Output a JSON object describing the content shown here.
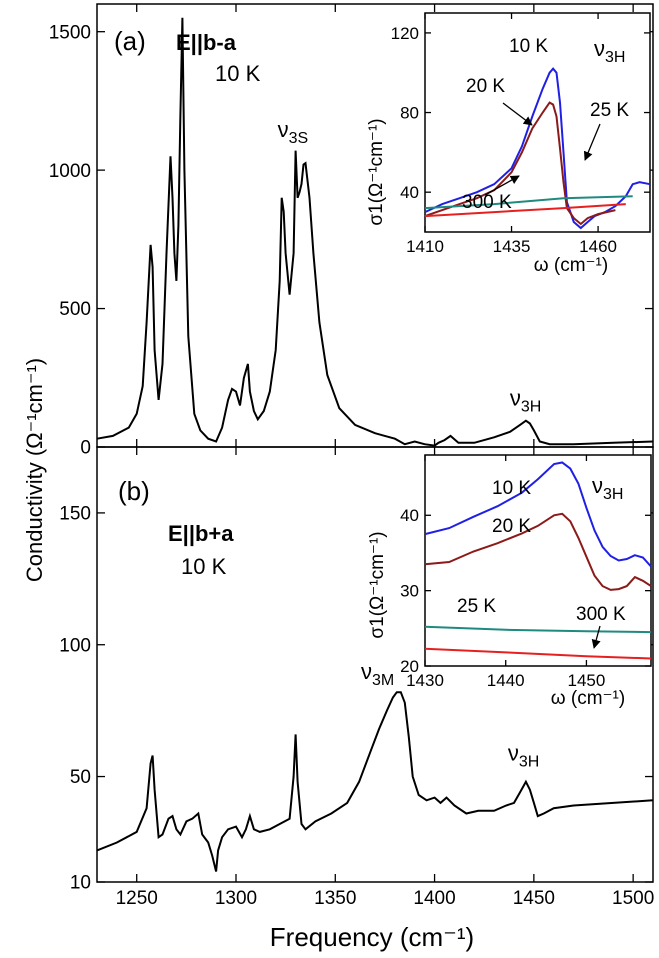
{
  "ylabel": "Conductivity (Ω⁻¹cm⁻¹)",
  "xlabel": "Frequency (cm⁻¹)",
  "colors": {
    "black": "#000000",
    "blue": "#1f1fe6",
    "darkred": "#8b1a1a",
    "teal": "#1e8a80",
    "red": "#e62020"
  },
  "chart_data": [
    {
      "type": "line",
      "panel": "(a)",
      "polarization": "E||b-a",
      "temperature": "10 K",
      "xlim": [
        1230,
        1510
      ],
      "ylim": [
        0,
        1600
      ],
      "yticks": [
        0,
        500,
        1000,
        1500
      ],
      "xticks": [
        1250,
        1300,
        1350,
        1400,
        1450,
        1500
      ],
      "annotations": [
        {
          "text": "ν3S",
          "x": 1330,
          "y": 1120
        },
        {
          "text": "ν3H",
          "x": 1447,
          "y": 150
        }
      ],
      "series": [
        {
          "color": "#000000",
          "x": [
            1230,
            1238,
            1246,
            1250,
            1253,
            1255,
            1257,
            1258,
            1259,
            1261,
            1263,
            1265,
            1267,
            1268,
            1269,
            1270,
            1271,
            1272,
            1273,
            1274,
            1276,
            1279,
            1282,
            1286,
            1290,
            1293,
            1296,
            1298,
            1300,
            1302,
            1304,
            1306,
            1307,
            1309,
            1311,
            1314,
            1317,
            1320,
            1322,
            1323,
            1324,
            1325,
            1327,
            1329,
            1330,
            1331,
            1332,
            1333,
            1334,
            1335,
            1337,
            1339,
            1342,
            1346,
            1352,
            1360,
            1370,
            1380,
            1385,
            1390,
            1395,
            1400,
            1402,
            1405,
            1408,
            1412,
            1420,
            1430,
            1438,
            1443,
            1446,
            1448,
            1450,
            1453,
            1458,
            1470,
            1490,
            1510
          ],
          "y": [
            30,
            40,
            70,
            120,
            220,
            450,
            730,
            650,
            350,
            170,
            300,
            700,
            1050,
            900,
            700,
            600,
            800,
            1200,
            1550,
            1000,
            400,
            120,
            60,
            30,
            20,
            70,
            170,
            210,
            200,
            150,
            250,
            300,
            200,
            130,
            100,
            130,
            200,
            350,
            600,
            900,
            850,
            700,
            550,
            700,
            1070,
            900,
            920,
            950,
            1020,
            1025,
            900,
            700,
            450,
            260,
            140,
            80,
            50,
            30,
            10,
            20,
            10,
            5,
            15,
            25,
            40,
            15,
            15,
            35,
            55,
            80,
            95,
            85,
            60,
            20,
            10,
            10,
            15,
            20
          ]
        }
      ]
    },
    {
      "type": "line",
      "panel": "(b)",
      "polarization": "E||b+a",
      "temperature": "10 K",
      "xlim": [
        1230,
        1510
      ],
      "ylim": [
        10,
        175
      ],
      "yticks": [
        10,
        50,
        100,
        150
      ],
      "xticks": [
        1250,
        1300,
        1350,
        1400,
        1450,
        1500
      ],
      "annotations": [
        {
          "text": "ν3M",
          "x": 1372,
          "y": 87
        },
        {
          "text": "ν3H",
          "x": 1446,
          "y": 56
        }
      ],
      "series": [
        {
          "color": "#000000",
          "x": [
            1230,
            1240,
            1250,
            1255,
            1257,
            1258,
            1259,
            1261,
            1263,
            1266,
            1268,
            1270,
            1272,
            1275,
            1278,
            1281,
            1283,
            1286,
            1288,
            1290,
            1291,
            1293,
            1296,
            1300,
            1303,
            1305,
            1307,
            1309,
            1312,
            1317,
            1322,
            1327,
            1329,
            1330,
            1331,
            1333,
            1335,
            1340,
            1348,
            1356,
            1362,
            1368,
            1372,
            1376,
            1379,
            1381,
            1383,
            1385,
            1387,
            1389,
            1392,
            1396,
            1400,
            1403,
            1406,
            1410,
            1416,
            1422,
            1430,
            1436,
            1440,
            1443,
            1446,
            1448,
            1450,
            1452,
            1455,
            1460,
            1470,
            1490,
            1510
          ],
          "y": [
            22,
            25,
            29,
            38,
            55,
            58,
            45,
            27,
            28,
            34,
            35,
            30,
            28,
            33,
            34,
            36,
            28,
            25,
            20,
            14,
            22,
            27,
            30,
            31,
            27,
            30,
            35,
            30,
            29,
            30,
            32,
            34,
            50,
            66,
            48,
            32,
            30,
            33,
            36,
            40,
            48,
            60,
            68,
            75,
            80,
            82,
            82,
            78,
            65,
            50,
            43,
            41,
            42,
            40,
            42,
            39,
            36,
            37,
            37,
            39,
            40,
            44,
            48,
            45,
            40,
            35,
            36,
            38,
            39,
            40,
            41
          ]
        }
      ],
      "inset": {
        "xlabel": "ω (cm⁻¹)",
        "ylabel": "σ1(Ω⁻¹cm⁻¹)",
        "label": "ν3H",
        "xlim": [
          1430,
          1458
        ],
        "ylim": [
          20,
          48
        ],
        "xticks": [
          1430,
          1440,
          1450
        ],
        "yticks": [
          20,
          30,
          40
        ],
        "series": [
          {
            "name": "10 K",
            "color": "#1f1fe6",
            "x": [
              1430,
              1433,
              1436,
              1439,
              1442,
              1444,
              1446,
              1447,
              1448,
              1449,
              1450,
              1451,
              1452,
              1453,
              1454,
              1455,
              1456,
              1457,
              1458
            ],
            "y": [
              37.5,
              38.3,
              39.8,
              41.2,
              43,
              44.8,
              46.8,
              47,
              46.2,
              44.2,
              41,
              38,
              35.8,
              34.6,
              34,
              34.2,
              34.7,
              34.4,
              33.2
            ]
          },
          {
            "name": "20 K",
            "color": "#8b1a1a",
            "x": [
              1430,
              1433,
              1436,
              1439,
              1442,
              1444,
              1446,
              1447,
              1448,
              1449,
              1450,
              1451,
              1452,
              1453,
              1454,
              1455,
              1456,
              1457,
              1458
            ],
            "y": [
              33.5,
              33.8,
              35.2,
              36.3,
              37.6,
              38.6,
              40,
              40.2,
              39.2,
              37,
              34.5,
              32,
              30.6,
              30.1,
              30.2,
              30.6,
              31.8,
              31.3,
              30.6
            ]
          },
          {
            "name": "25 K",
            "color": "#1e8a80",
            "x": [
              1430,
              1440,
              1450,
              1458
            ],
            "y": [
              25.2,
              24.8,
              24.6,
              24.5
            ]
          },
          {
            "name": "300 K",
            "color": "#e62020",
            "x": [
              1430,
              1440,
              1450,
              1458
            ],
            "y": [
              22.3,
              21.8,
              21.3,
              21
            ]
          }
        ]
      }
    }
  ],
  "inset_a": {
    "xlabel": "ω (cm⁻¹)",
    "ylabel": "σ1(Ω⁻¹cm⁻¹)",
    "label": "ν3H",
    "xlim": [
      1410,
      1475
    ],
    "ylim": [
      20,
      130
    ],
    "xticks": [
      1410,
      1435,
      1460
    ],
    "yticks": [
      40,
      80,
      120
    ],
    "series": [
      {
        "name": "10 K",
        "color": "#1f1fe6",
        "x": [
          1410,
          1415,
          1420,
          1425,
          1430,
          1435,
          1438,
          1441,
          1444,
          1446,
          1447,
          1448,
          1449,
          1450,
          1451,
          1453,
          1455,
          1457,
          1459,
          1462,
          1465,
          1468,
          1470,
          1472,
          1475
        ],
        "y": [
          30,
          34,
          37,
          40,
          44,
          52,
          63,
          78,
          92,
          100,
          102,
          100,
          85,
          60,
          35,
          25,
          22,
          25,
          28,
          30,
          33,
          38,
          44,
          45,
          44
        ]
      },
      {
        "name": "20 K",
        "color": "#8b1a1a",
        "x": [
          1410,
          1415,
          1420,
          1425,
          1430,
          1435,
          1438,
          1441,
          1444,
          1446,
          1447,
          1448,
          1449,
          1450,
          1451,
          1453,
          1455,
          1457,
          1460,
          1465
        ],
        "y": [
          28,
          31,
          34,
          37,
          41,
          50,
          60,
          72,
          80,
          85,
          84,
          78,
          62,
          45,
          32,
          27,
          24,
          27,
          29,
          31
        ]
      },
      {
        "name": "25 K",
        "color": "#1e8a80",
        "x": [
          1410,
          1430,
          1450,
          1470
        ],
        "y": [
          32,
          34,
          37,
          38
        ]
      },
      {
        "name": "300 K",
        "color": "#e62020",
        "x": [
          1410,
          1430,
          1450,
          1468
        ],
        "y": [
          28,
          30,
          32,
          34
        ]
      }
    ]
  }
}
